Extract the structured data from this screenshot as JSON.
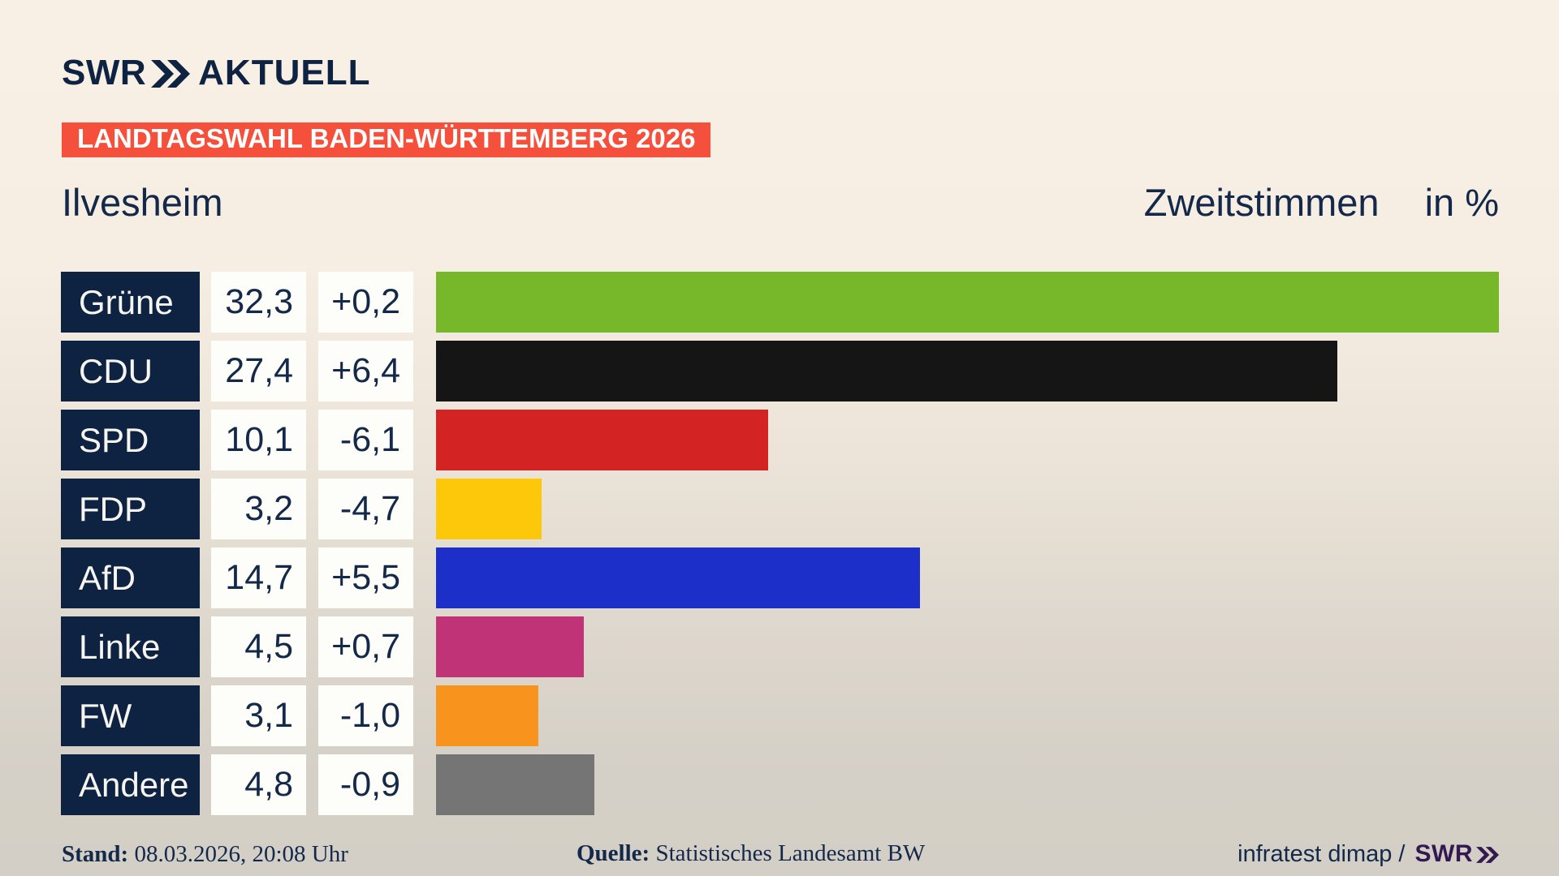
{
  "header": {
    "logo_text": "SWR",
    "logo_suffix": "AKTUELL",
    "banner": "LANDTAGSWAHL BADEN-WÜRTTEMBERG 2026"
  },
  "titles": {
    "region": "Ilvesheim",
    "measure": "Zweitstimmen",
    "unit": "in %"
  },
  "chart_data": {
    "type": "bar",
    "orientation": "horizontal",
    "title": "Landtagswahl Baden-Württemberg 2026 — Ilvesheim, Zweitstimmen in %",
    "value_unit": "percent",
    "scale_max": 32.3,
    "grid": false,
    "legend": false,
    "categories": [
      "Grüne",
      "CDU",
      "SPD",
      "FDP",
      "AfD",
      "Linke",
      "FW",
      "Andere"
    ],
    "values": [
      32.3,
      27.4,
      10.1,
      3.2,
      14.7,
      4.5,
      3.1,
      4.8
    ],
    "changes": [
      0.2,
      6.4,
      -6.1,
      -4.7,
      5.5,
      0.7,
      -1.0,
      -0.9
    ],
    "rows": [
      {
        "party": "Grüne",
        "value": "32,3",
        "change": "+0,2",
        "value_num": 32.3,
        "color": "#76b82a"
      },
      {
        "party": "CDU",
        "value": "27,4",
        "change": "+6,4",
        "value_num": 27.4,
        "color": "#151515"
      },
      {
        "party": "SPD",
        "value": "10,1",
        "change": "-6,1",
        "value_num": 10.1,
        "color": "#d32423"
      },
      {
        "party": "FDP",
        "value": "3,2",
        "change": "-4,7",
        "value_num": 3.2,
        "color": "#fdc70a"
      },
      {
        "party": "AfD",
        "value": "14,7",
        "change": "+5,5",
        "value_num": 14.7,
        "color": "#1c2fc8"
      },
      {
        "party": "Linke",
        "value": "4,5",
        "change": "+0,7",
        "value_num": 4.5,
        "color": "#c03376"
      },
      {
        "party": "FW",
        "value": "3,1",
        "change": "-1,0",
        "value_num": 3.1,
        "color": "#f8941e"
      },
      {
        "party": "Andere",
        "value": "4,8",
        "change": "-0,9",
        "value_num": 4.8,
        "color": "#757575"
      }
    ]
  },
  "footer": {
    "stand_label": "Stand:",
    "stand_value": "08.03.2026, 20:08 Uhr",
    "source_label": "Quelle:",
    "source_value": "Statistisches Landesamt BW",
    "credit": "infratest dimap /",
    "credit_logo": "SWR"
  },
  "colors": {
    "navy": "#0e2342",
    "banner_red": "#f4503b",
    "box_white": "#fdfdfa",
    "background_top": "#f8f0e4",
    "background_bottom": "#d3cfc6",
    "footer_logo_violet": "#33194f"
  }
}
